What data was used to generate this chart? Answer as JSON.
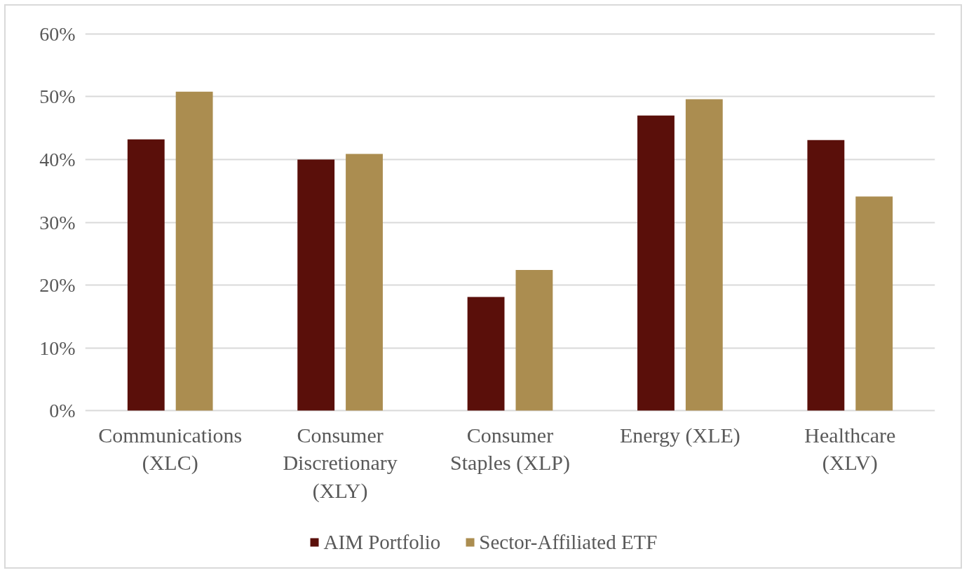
{
  "chart_data": {
    "type": "bar",
    "categories": [
      "Communications (XLC)",
      "Consumer Discretionary (XLY)",
      "Consumer Staples (XLP)",
      "Energy (XLE)",
      "Healthcare (XLV)"
    ],
    "series": [
      {
        "name": "AIM Portfolio",
        "color": "#5a0f0a",
        "values": [
          43.2,
          40.0,
          18.1,
          47.0,
          43.1
        ]
      },
      {
        "name": "Sector-Affiliated ETF",
        "color": "#ab8d50",
        "values": [
          50.8,
          40.9,
          22.4,
          49.6,
          34.1
        ]
      }
    ],
    "ylim": [
      0,
      60
    ],
    "yticks": [
      {
        "value": 0,
        "label": "0%"
      },
      {
        "value": 10,
        "label": "10%"
      },
      {
        "value": 20,
        "label": "20%"
      },
      {
        "value": 30,
        "label": "30%"
      },
      {
        "value": 40,
        "label": "40%"
      },
      {
        "value": 50,
        "label": "50%"
      },
      {
        "value": 60,
        "label": "60%"
      }
    ],
    "grid": "y",
    "legend": "bottom"
  }
}
